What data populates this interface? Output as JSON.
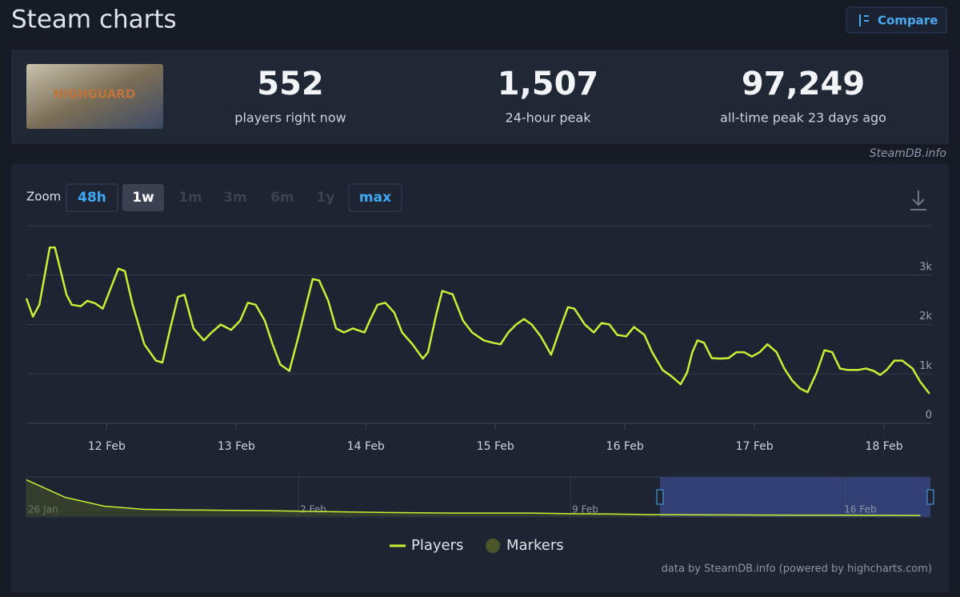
{
  "header": {
    "title": "Steam charts",
    "compare": "Compare"
  },
  "thumbnail_text": "HIGHGUARD",
  "stats": [
    {
      "value": "552",
      "label": "players right now"
    },
    {
      "value": "1,507",
      "label": "24-hour peak"
    },
    {
      "value": "97,249",
      "label": "all-time peak 23 days ago"
    }
  ],
  "credit_top": "SteamDB.info",
  "zoom": {
    "label": "Zoom",
    "options": [
      "48h",
      "1w",
      "1m",
      "3m",
      "6m",
      "1y",
      "max"
    ]
  },
  "chart_data": {
    "type": "line",
    "x": [
      11.38,
      11.43,
      11.48,
      11.56,
      11.6,
      11.69,
      11.73,
      11.8,
      11.85,
      11.91,
      11.97,
      12.03,
      12.09,
      12.14,
      12.2,
      12.29,
      12.38,
      12.43,
      12.49,
      12.55,
      12.6,
      12.67,
      12.75,
      12.81,
      12.88,
      12.96,
      13.03,
      13.09,
      13.15,
      13.22,
      13.28,
      13.34,
      13.41,
      13.48,
      13.54,
      13.59,
      13.64,
      13.71,
      13.77,
      13.83,
      13.9,
      13.99,
      14.03,
      14.09,
      14.15,
      14.22,
      14.28,
      14.36,
      14.44,
      14.48,
      14.54,
      14.59,
      14.67,
      14.75,
      14.82,
      14.91,
      14.98,
      15.04,
      15.1,
      15.16,
      15.22,
      15.28,
      15.35,
      15.43,
      15.5,
      15.56,
      15.61,
      15.69,
      15.76,
      15.82,
      15.88,
      15.94,
      16.01,
      16.07,
      16.15,
      16.21,
      16.29,
      16.36,
      16.43,
      16.48,
      16.52,
      16.56,
      16.61,
      16.67,
      16.73,
      16.8,
      16.86,
      16.92,
      16.98,
      17.04,
      17.1,
      17.17,
      17.23,
      17.29,
      17.35,
      17.41,
      17.48,
      17.54,
      17.6,
      17.66,
      17.72,
      17.8,
      17.86,
      17.92,
      17.97,
      18.02,
      18.08,
      18.14,
      18.22,
      18.28,
      18.35
    ],
    "series": [
      {
        "name": "Players",
        "color": "#c8f035",
        "values": [
          2530,
          2160,
          2400,
          3560,
          3560,
          2600,
          2400,
          2370,
          2480,
          2430,
          2320,
          2730,
          3130,
          3080,
          2400,
          1600,
          1270,
          1230,
          1920,
          2560,
          2600,
          1920,
          1680,
          1840,
          2000,
          1890,
          2080,
          2440,
          2400,
          2080,
          1600,
          1190,
          1060,
          1760,
          2400,
          2920,
          2890,
          2480,
          1920,
          1840,
          1920,
          1840,
          2080,
          2400,
          2440,
          2240,
          1840,
          1600,
          1310,
          1440,
          2160,
          2680,
          2610,
          2080,
          1840,
          1680,
          1630,
          1600,
          1840,
          2000,
          2110,
          2000,
          1760,
          1390,
          1920,
          2350,
          2320,
          2000,
          1840,
          2030,
          2000,
          1790,
          1760,
          1950,
          1790,
          1440,
          1080,
          950,
          790,
          1030,
          1440,
          1680,
          1630,
          1320,
          1310,
          1320,
          1440,
          1440,
          1350,
          1440,
          1600,
          1440,
          1110,
          870,
          710,
          630,
          1030,
          1480,
          1440,
          1110,
          1080,
          1080,
          1110,
          1060,
          980,
          1080,
          1270,
          1270,
          1110,
          840,
          600
        ]
      }
    ],
    "xlim": [
      11.38,
      18.37
    ],
    "ylim": [
      0,
      4000
    ],
    "xticks": [
      {
        "value": 12,
        "label": "12 Feb"
      },
      {
        "value": 13,
        "label": "13 Feb"
      },
      {
        "value": 14,
        "label": "14 Feb"
      },
      {
        "value": 15,
        "label": "15 Feb"
      },
      {
        "value": 16,
        "label": "16 Feb"
      },
      {
        "value": 17,
        "label": "17 Feb"
      },
      {
        "value": 18,
        "label": "18 Feb"
      }
    ],
    "yticks": [
      0,
      {
        "value": 1000,
        "label": "1k"
      },
      {
        "value": 2000,
        "label": "2k"
      },
      {
        "value": 3000,
        "label": "3k"
      }
    ],
    "grid": true,
    "markers": {
      "name": "Markers",
      "color": "#4b5628"
    }
  },
  "navigator": {
    "values": [
      58000,
      30000,
      16000,
      11000,
      10000,
      9500,
      9000,
      8000,
      7000,
      6000,
      5500,
      5000,
      5000,
      5000,
      4000,
      3500,
      2500,
      2200,
      2000,
      1800,
      1700,
      1500,
      1300,
      1100
    ],
    "xlim": [
      0,
      23.3
    ],
    "ylim": [
      0,
      60000
    ],
    "xticks": [
      {
        "value": 0,
        "label": "26 Jan"
      },
      {
        "value": 7,
        "label": "2 Feb"
      },
      {
        "value": 14,
        "label": "9 Feb"
      },
      {
        "value": 21,
        "label": "16 Feb"
      }
    ]
  },
  "footer": "data by SteamDB.info (powered by highcharts.com)"
}
